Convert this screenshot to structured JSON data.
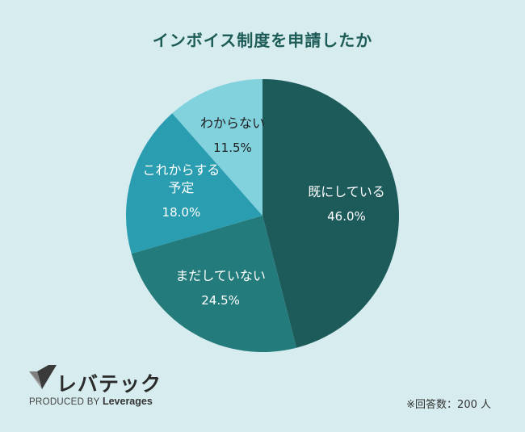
{
  "title": "インボイス制度を申請したか",
  "chart_data": {
    "type": "pie",
    "slices": [
      {
        "label": "既にしている",
        "value": 46.0,
        "value_label": "46.0%",
        "color": "#1d5b5b"
      },
      {
        "label": "まだしていない",
        "value": 24.5,
        "value_label": "24.5%",
        "color": "#247b7b"
      },
      {
        "label": "これからする予定",
        "label_lines": [
          "これからする",
          "予定"
        ],
        "value": 18.0,
        "value_label": "18.0%",
        "color": "#2a9db1"
      },
      {
        "label": "わからない",
        "value": 11.5,
        "value_label": "11.5%",
        "color": "#82d2de"
      }
    ]
  },
  "logo": {
    "name": "レバテック",
    "sub_prefix": "PRODUCED BY",
    "sub_brand": "Leverages",
    "icon": "check-mark-logo-icon"
  },
  "note": "※回答数：200 人"
}
